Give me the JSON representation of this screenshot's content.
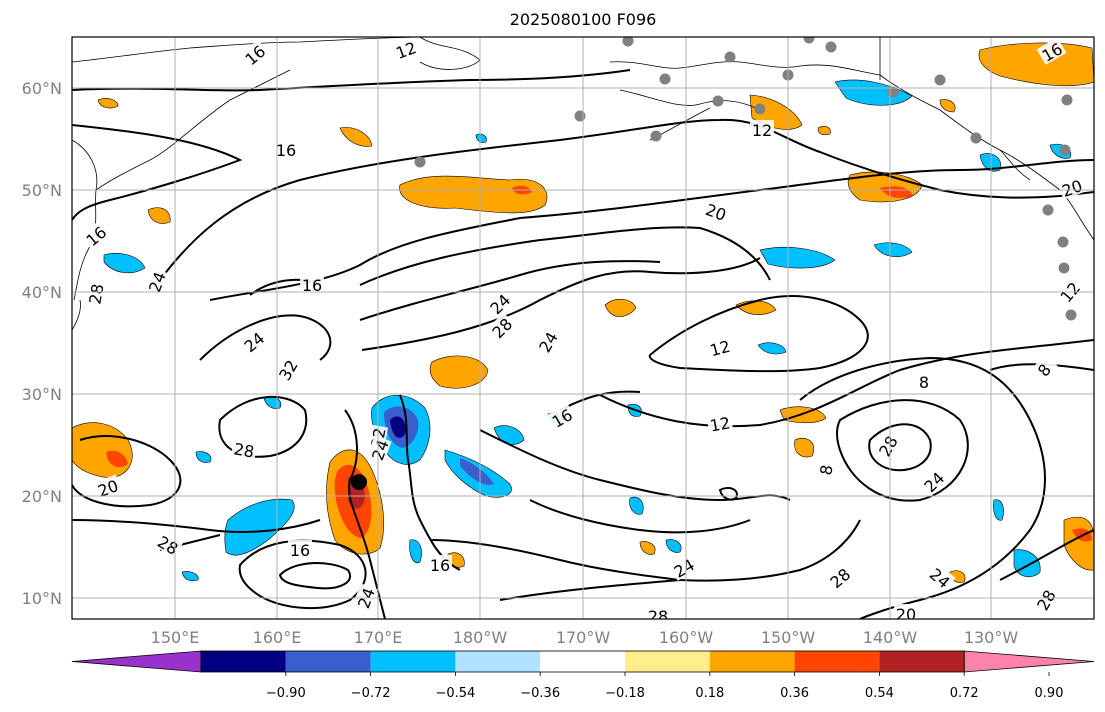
{
  "title": "2025080100 F096",
  "map": {
    "lat_labels": [
      "60°N",
      "50°N",
      "40°N",
      "30°N",
      "20°N",
      "10°N"
    ],
    "lon_labels": [
      "150°E",
      "160°E",
      "170°E",
      "180°W",
      "170°W",
      "160°W",
      "150°W",
      "140°W",
      "130°W"
    ],
    "grid": true,
    "contour_color": "#000000",
    "coast_color": "#000000",
    "contour_labels": [
      "16",
      "12",
      "16",
      "16",
      "20",
      "12",
      "16",
      "16",
      "20",
      "24",
      "28",
      "24",
      "32",
      "28",
      "32",
      "24",
      "24",
      "28",
      "20",
      "16",
      "24",
      "16",
      "28",
      "24",
      "28",
      "20",
      "24",
      "28",
      "12",
      "8",
      "8",
      "12",
      "28",
      "24",
      "8",
      "24",
      "28",
      "12",
      "16"
    ],
    "station_color": "#808080",
    "storm_center_color": "#000000"
  },
  "colorbar": {
    "ticks": [
      "−0.90",
      "−0.72",
      "−0.54",
      "−0.36",
      "−0.18",
      "0.18",
      "0.36",
      "0.54",
      "0.72",
      "0.90"
    ],
    "colors": [
      "#9932cc",
      "#000080",
      "#3a5fcd",
      "#00bfff",
      "#b0e2ff",
      "#ffffff",
      "#ffec8b",
      "#ffa500",
      "#ff4500",
      "#b22222",
      "#ff82ab"
    ],
    "extend": "both"
  }
}
